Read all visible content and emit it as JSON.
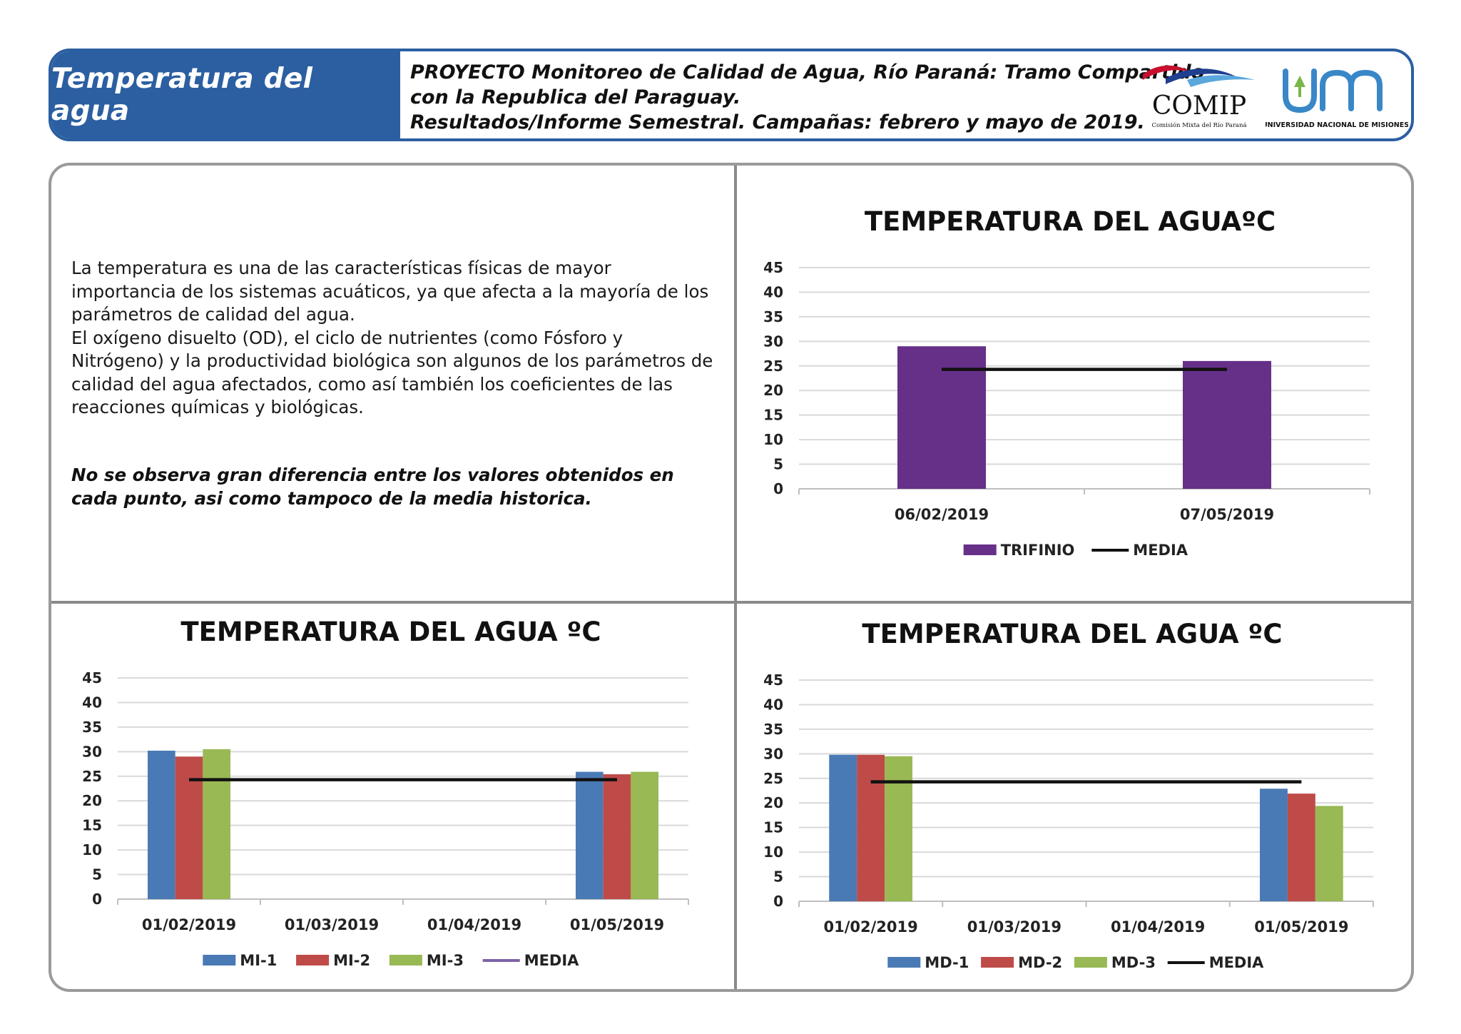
{
  "header": {
    "title": "Temperatura del agua",
    "project_lines": [
      "PROYECTO Monitoreo de Calidad de Agua, Río Paraná: Tramo Compartido",
      "con la Republica del Paraguay.",
      "Resultados/Informe Semestral. Campañas: febrero y mayo de 2019."
    ],
    "logo_comip": {
      "name": "COMIP",
      "subtitle": "Comisión Mixta del Río Paraná"
    },
    "logo_unam": {
      "subtitle": "UNIVERSIDAD NACIONAL DE MISIONES"
    }
  },
  "body": {
    "paragraph_1": "La temperatura es una de las características físicas de mayor importancia de los sistemas acuáticos, ya que afecta a la mayoría de los parámetros de calidad del agua.",
    "paragraph_2": "El oxígeno disuelto (OD), el ciclo de nutrientes (como Fósforo y Nitrógeno) y la productividad biológica son algunos de los parámetros de calidad del agua afectados, como así también los coeficientes de las reacciones químicas y biológicas.",
    "conclusion": "No se observa gran diferencia entre los valores obtenidos en cada punto, asi como tampoco de la media historica."
  },
  "colors": {
    "header_blue": "#2b5fa1",
    "purple": "#663089",
    "blue": "#4a7ab5",
    "red": "#be4b48",
    "green": "#98b954",
    "media_black": "#111111",
    "media_purple": "#7e62a8"
  },
  "chart_data": [
    {
      "id": "trifinio",
      "type": "bar",
      "title": "TEMPERATURA DEL AGUAºC",
      "categories": [
        "06/02/2019",
        "07/05/2019"
      ],
      "series": [
        {
          "name": "TRIFINIO",
          "values": [
            29,
            26
          ],
          "color": "#663089"
        }
      ],
      "media": {
        "name": "MEDIA",
        "value": 24.3,
        "color": "#111111"
      },
      "yticks": [
        "0",
        "5",
        "10",
        "15",
        "20",
        "25",
        "30",
        "35",
        "40",
        "45"
      ],
      "ylim": [
        0,
        45
      ],
      "grid": true,
      "legend": "bottom"
    },
    {
      "id": "mi",
      "type": "bar",
      "title": "TEMPERATURA DEL AGUA ºC",
      "categories": [
        "01/02/2019",
        "01/03/2019",
        "01/04/2019",
        "01/05/2019"
      ],
      "series": [
        {
          "name": "MI-1",
          "values": [
            30.2,
            null,
            null,
            25.9
          ],
          "color": "#4a7ab5"
        },
        {
          "name": "MI-2",
          "values": [
            29,
            null,
            null,
            25.4
          ],
          "color": "#be4b48"
        },
        {
          "name": "MI-3",
          "values": [
            30.5,
            null,
            null,
            25.9
          ],
          "color": "#98b954"
        }
      ],
      "media": {
        "name": "MEDIA",
        "value": 24.3,
        "color": "#111111",
        "legend_color": "#7e62a8"
      },
      "yticks": [
        "0",
        "5",
        "10",
        "15",
        "20",
        "25",
        "30",
        "35",
        "40",
        "45"
      ],
      "ylim": [
        0,
        45
      ],
      "grid": true,
      "legend": "bottom"
    },
    {
      "id": "md",
      "type": "bar",
      "title": "TEMPERATURA DEL AGUA ºC",
      "categories": [
        "01/02/2019",
        "01/03/2019",
        "01/04/2019",
        "01/05/2019"
      ],
      "series": [
        {
          "name": "MD-1",
          "values": [
            29.8,
            null,
            null,
            22.9
          ],
          "color": "#4a7ab5"
        },
        {
          "name": "MD-2",
          "values": [
            29.8,
            null,
            null,
            21.9
          ],
          "color": "#be4b48"
        },
        {
          "name": "MD-3",
          "values": [
            29.5,
            null,
            null,
            19.4
          ],
          "color": "#98b954"
        }
      ],
      "media": {
        "name": "MEDIA",
        "value": 24.3,
        "color": "#111111"
      },
      "yticks": [
        "0",
        "5",
        "10",
        "15",
        "20",
        "25",
        "30",
        "35",
        "40",
        "45"
      ],
      "ylim": [
        0,
        45
      ],
      "grid": true,
      "legend": "bottom"
    }
  ]
}
